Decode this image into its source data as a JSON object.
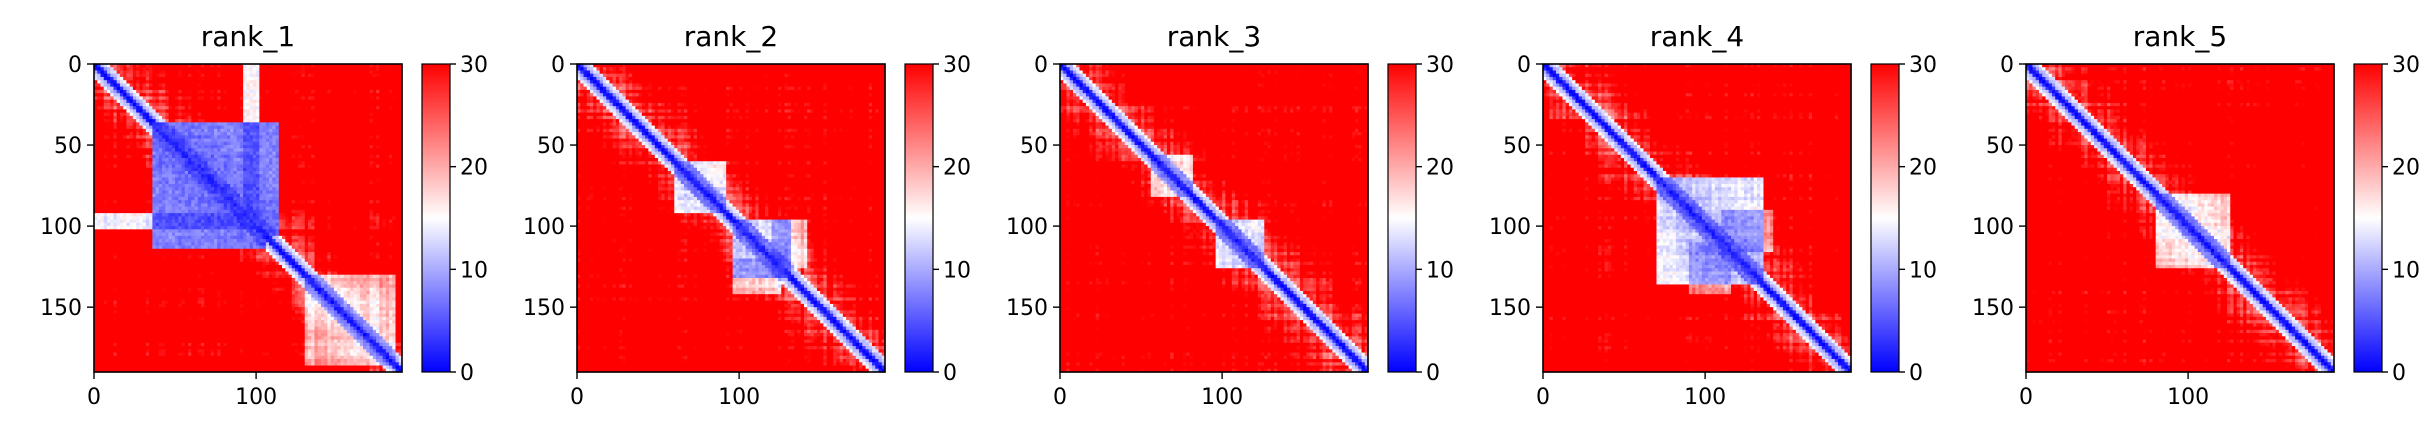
{
  "chart_data": {
    "type": "heatmap",
    "panels": [
      {
        "title": "rank_1",
        "blocks": [
          [
            35,
            112,
            35,
            105,
            0.85
          ],
          [
            92,
            100,
            0,
            98,
            0.6
          ],
          [
            130,
            185,
            130,
            185,
            0.45
          ]
        ]
      },
      {
        "title": "rank_2",
        "blocks": [
          [
            60,
            90,
            60,
            90,
            0.55
          ],
          [
            95,
            130,
            95,
            130,
            0.6
          ],
          [
            120,
            140,
            95,
            125,
            0.45
          ]
        ]
      },
      {
        "title": "rank_3",
        "blocks": [
          [
            55,
            80,
            55,
            80,
            0.45
          ],
          [
            95,
            125,
            95,
            125,
            0.6
          ]
        ]
      },
      {
        "title": "rank_4",
        "blocks": [
          [
            70,
            135,
            70,
            135,
            0.65
          ],
          [
            110,
            140,
            90,
            115,
            0.4
          ]
        ]
      },
      {
        "title": "rank_5",
        "blocks": [
          [
            80,
            125,
            80,
            125,
            0.5
          ]
        ]
      }
    ],
    "n_residues": 190,
    "x_ticks": [
      0,
      100
    ],
    "y_ticks": [
      0,
      50,
      100,
      150
    ],
    "colorbar": {
      "min": 0,
      "max": 30,
      "ticks": [
        0,
        10,
        20,
        30
      ],
      "colors": [
        "#0000ff",
        "#ffffff",
        "#ff0000"
      ]
    },
    "xlim": [
      0,
      190
    ],
    "ylim": [
      190,
      0
    ]
  }
}
